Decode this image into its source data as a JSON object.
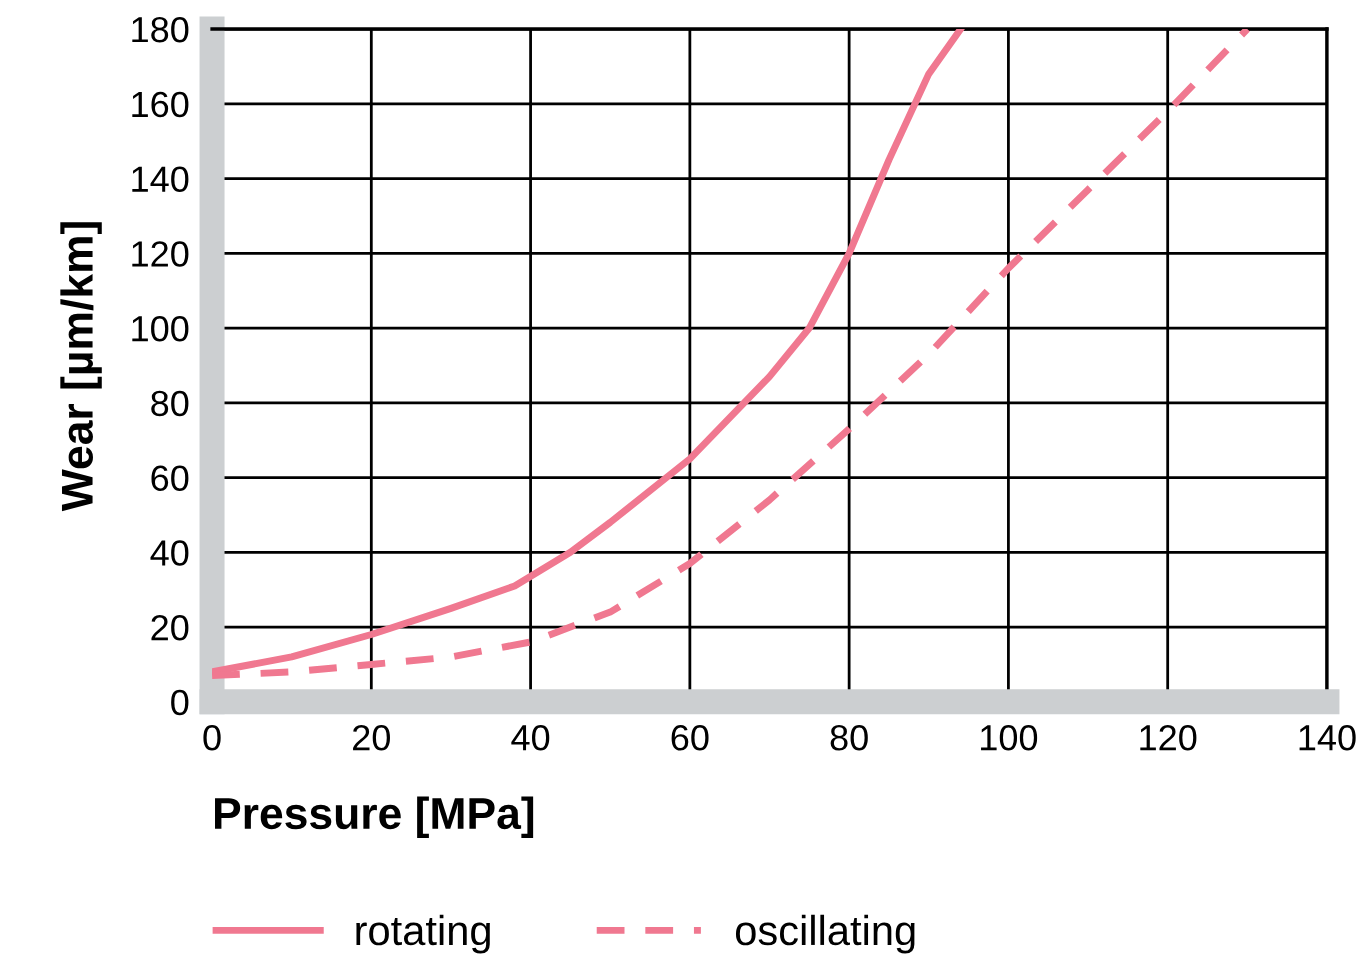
{
  "chart_data": {
    "type": "line",
    "xlabel": "Pressure [MPa]",
    "ylabel": "Wear [µm/km]",
    "xlim": [
      0,
      140
    ],
    "xticks": [
      0,
      20,
      40,
      60,
      80,
      100,
      120,
      140
    ],
    "ylim": [
      0,
      180
    ],
    "yticks": [
      0,
      20,
      40,
      60,
      80,
      100,
      120,
      140,
      160,
      180
    ],
    "grid": true,
    "legend": "bottom",
    "series": [
      {
        "name": "rotating",
        "color": "#f07890",
        "line_style": "solid",
        "x": [
          0,
          10,
          20,
          30,
          38,
          45,
          50,
          60,
          70,
          75,
          80,
          85,
          90,
          94
        ],
        "values": [
          8,
          12,
          18,
          25,
          31,
          40,
          48,
          65,
          87,
          100,
          120,
          145,
          168,
          180
        ]
      },
      {
        "name": "oscillating",
        "color": "#f07890",
        "line_style": "dashed",
        "x": [
          0,
          10,
          20,
          30,
          40,
          50,
          60,
          70,
          80,
          90,
          100,
          110,
          120,
          130
        ],
        "values": [
          7,
          8,
          10,
          12,
          16,
          24,
          37,
          54,
          73,
          93,
          116,
          137,
          158,
          180
        ]
      }
    ]
  }
}
